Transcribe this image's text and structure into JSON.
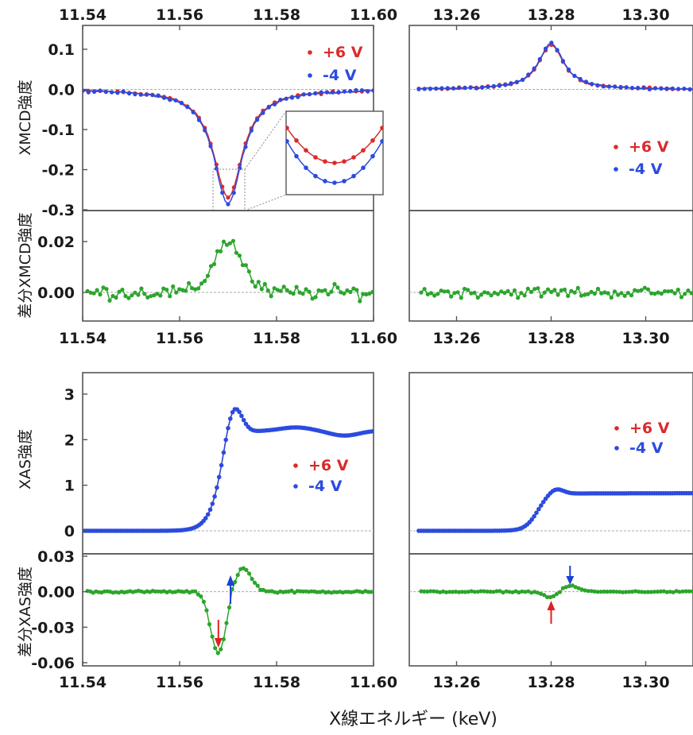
{
  "figure": {
    "xlabel": "X線エネルギー (keV)",
    "ylabels": {
      "xmcd": "XMCD強度",
      "xmcd_diff": "差分XMCD強度",
      "xas": "XAS強度",
      "xas_diff": "差分XAS強度"
    },
    "legend": {
      "series1": "+6 V",
      "series2": "-4 V"
    },
    "colors": {
      "series1": "#d92b2b",
      "series2": "#2b4be0",
      "diff": "#2ca52c",
      "arrow_up": "#e02020",
      "arrow_down": "#1d3fd6",
      "frame": "#555555",
      "zero_line": "#aaaaaa"
    }
  },
  "chart_data": [
    {
      "id": "xmcd_L3",
      "type": "line",
      "xlim": [
        11.54,
        11.6
      ],
      "ylim": [
        -0.3,
        0.15
      ],
      "xticks": [
        "11.54",
        "11.56",
        "11.58",
        "11.60"
      ],
      "yticks": [
        "0.1",
        "0.0",
        "-0.1",
        "-0.2",
        "-0.3"
      ],
      "ylabel": "XMCD強度",
      "legend": "top-right",
      "series": [
        {
          "name": "+6 V",
          "peak": {
            "x": 11.57,
            "y": -0.27,
            "width": 0.0036
          }
        },
        {
          "name": "-4 V",
          "peak": {
            "x": 11.57,
            "y": -0.285,
            "width": 0.0036
          }
        }
      ],
      "inset": "zoom on minimum near 11.570 keV"
    },
    {
      "id": "xmcd_L2",
      "type": "line",
      "xlim": [
        13.25,
        13.31
      ],
      "ylim": [
        -0.3,
        0.15
      ],
      "xticks": [
        "13.26",
        "13.28",
        "13.30"
      ],
      "legend": "middle-right",
      "series": [
        {
          "name": "+6 V",
          "peak": {
            "x": 13.28,
            "y": 0.112,
            "width": 0.0032
          }
        },
        {
          "name": "-4 V",
          "peak": {
            "x": 13.28,
            "y": 0.116,
            "width": 0.0032
          }
        }
      ]
    },
    {
      "id": "xmcd_diff_L3",
      "type": "line",
      "xlim": [
        11.54,
        11.6
      ],
      "ylim": [
        -0.007,
        0.027
      ],
      "xticks": [
        "11.54",
        "11.56",
        "11.58",
        "11.60"
      ],
      "yticks": [
        "0.02",
        "0.00"
      ],
      "ylabel": "差分XMCD強度",
      "series": [
        {
          "name": "",
          "feature": {
            "x": 11.57,
            "y": 0.02,
            "width": 0.003
          },
          "noise": 0.004
        }
      ]
    },
    {
      "id": "xmcd_diff_L2",
      "type": "line",
      "xlim": [
        13.25,
        13.31
      ],
      "ylim": [
        -0.007,
        0.027
      ],
      "xticks": [
        "13.26",
        "13.28",
        "13.30"
      ],
      "series": [
        {
          "name": "",
          "noise": 0.003
        }
      ]
    },
    {
      "id": "xas_L3",
      "type": "line",
      "xlim": [
        11.54,
        11.6
      ],
      "ylim": [
        -0.2,
        3.4
      ],
      "xticks": [
        "11.54",
        "11.56",
        "11.58",
        "11.60"
      ],
      "yticks": [
        "3",
        "2",
        "1",
        "0"
      ],
      "ylabel": "XAS強度",
      "legend": "center-right",
      "series": [
        {
          "name": "+6 V",
          "edge": 11.5685,
          "white_line": {
            "x": 11.571,
            "y": 2.85
          },
          "post_edge": 2.2
        },
        {
          "name": "-4 V",
          "edge": 11.5685,
          "white_line": {
            "x": 11.571,
            "y": 2.85
          },
          "post_edge": 2.2
        }
      ]
    },
    {
      "id": "xas_L2",
      "type": "line",
      "xlim": [
        13.25,
        13.31
      ],
      "ylim": [
        -0.2,
        3.4
      ],
      "xticks": [
        "13.26",
        "13.28",
        "13.30"
      ],
      "legend": "top-right",
      "series": [
        {
          "name": "+6 V",
          "edge": 13.277,
          "white_line": {
            "x": 13.281,
            "y": 0.85
          },
          "post_edge": 1.0
        },
        {
          "name": "-4 V",
          "edge": 13.277,
          "white_line": {
            "x": 13.281,
            "y": 0.85
          },
          "post_edge": 1.0
        }
      ]
    },
    {
      "id": "xas_diff_L3",
      "type": "line",
      "xlim": [
        11.54,
        11.6
      ],
      "ylim": [
        -0.06,
        0.03
      ],
      "xticks": [
        "11.54",
        "11.56",
        "11.58",
        "11.60"
      ],
      "yticks": [
        "0.03",
        "0.00",
        "-0.03",
        "-0.06"
      ],
      "ylabel": "差分XAS強度",
      "series": [
        {
          "name": "",
          "min": {
            "x": 11.568,
            "y": -0.052
          },
          "max": {
            "x": 11.573,
            "y": 0.02
          }
        }
      ],
      "arrows": [
        {
          "direction": "down",
          "x": 11.568,
          "color": "red"
        },
        {
          "direction": "up",
          "x": 11.5705,
          "color": "blue"
        }
      ]
    },
    {
      "id": "xas_diff_L2",
      "type": "line",
      "xlim": [
        13.25,
        13.31
      ],
      "ylim": [
        -0.06,
        0.03
      ],
      "xticks": [
        "13.26",
        "13.28",
        "13.30"
      ],
      "series": [
        {
          "name": "",
          "min": {
            "x": 13.28,
            "y": -0.005
          },
          "max": {
            "x": 13.284,
            "y": 0.005
          }
        }
      ],
      "arrows": [
        {
          "direction": "up",
          "x": 13.28,
          "color": "red"
        },
        {
          "direction": "down",
          "x": 13.284,
          "color": "blue"
        }
      ]
    }
  ]
}
